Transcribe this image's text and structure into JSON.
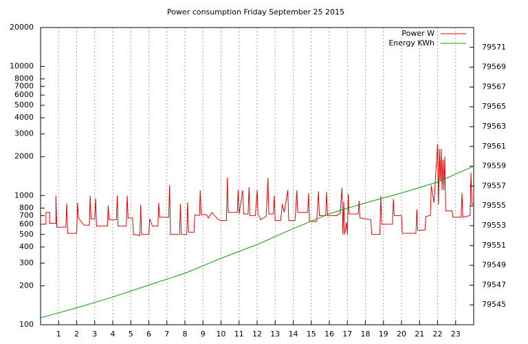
{
  "chart_data": {
    "type": "line",
    "title": "Power consumption Friday September 25 2015",
    "xlim": [
      0,
      24
    ],
    "xticks": [
      1,
      2,
      3,
      4,
      5,
      6,
      7,
      8,
      9,
      10,
      11,
      12,
      13,
      14,
      15,
      16,
      17,
      18,
      19,
      20,
      21,
      22,
      23
    ],
    "ylim": [
      100,
      20000
    ],
    "log_y": true,
    "yticks": [
      100,
      200,
      300,
      400,
      500,
      600,
      700,
      800,
      1000,
      2000,
      3000,
      4000,
      5000,
      6000,
      7000,
      8000,
      10000,
      20000
    ],
    "y2lim": [
      79543,
      79573
    ],
    "y2ticks": [
      79545,
      79547,
      79549,
      79551,
      79553,
      79555,
      79557,
      79559,
      79561,
      79563,
      79565,
      79567,
      79569,
      79571
    ],
    "grid": "x",
    "legend": "top-right",
    "series": [
      {
        "name": "Power W",
        "color": "#e00000",
        "x": [
          0,
          0.3,
          0.3,
          0.5,
          0.5,
          0.85,
          0.85,
          0.9,
          1.4,
          1.45,
          1.5,
          2.0,
          2.05,
          2.1,
          2.4,
          2.7,
          2.75,
          2.8,
          3.0,
          3.05,
          3.1,
          3.7,
          3.75,
          3.8,
          4.2,
          4.25,
          4.3,
          4.75,
          4.8,
          4.85,
          5.1,
          5.15,
          5.5,
          5.55,
          5.6,
          6.0,
          6.05,
          6.2,
          6.5,
          6.55,
          6.6,
          7.1,
          7.15,
          7.2,
          7.7,
          7.75,
          7.8,
          8.1,
          8.15,
          8.2,
          8.5,
          8.55,
          8.8,
          8.85,
          8.9,
          9.2,
          9.3,
          9.5,
          9.8,
          10.0,
          10.3,
          10.35,
          10.4,
          10.9,
          10.95,
          11.0,
          11.2,
          11.25,
          11.5,
          11.55,
          11.6,
          11.9,
          12.0,
          12.05,
          12.2,
          12.5,
          12.6,
          12.65,
          12.9,
          12.95,
          13.0,
          13.3,
          13.4,
          13.5,
          13.7,
          13.75,
          14.1,
          14.2,
          14.25,
          14.8,
          14.85,
          14.9,
          15.3,
          15.4,
          15.45,
          15.8,
          15.85,
          15.9,
          16.4,
          16.6,
          16.7,
          16.75,
          16.8,
          16.85,
          16.95,
          17.0,
          17.05,
          17.1,
          17.6,
          17.65,
          17.7,
          18.3,
          18.35,
          18.8,
          18.85,
          18.9,
          19.5,
          19.55,
          19.6,
          20.0,
          20.05,
          20.8,
          20.85,
          20.9,
          21.3,
          21.35,
          21.6,
          21.65,
          21.8,
          22.0,
          22.05,
          22.1,
          22.15,
          22.2,
          22.25,
          22.3,
          22.35,
          22.4,
          22.45,
          22.8,
          22.85,
          23.3,
          23.35,
          23.4,
          23.8,
          23.85,
          23.9,
          24
        ],
        "values": [
          600,
          600,
          740,
          740,
          610,
          610,
          1000,
          570,
          570,
          870,
          510,
          510,
          880,
          670,
          590,
          590,
          1000,
          660,
          660,
          950,
          580,
          580,
          840,
          650,
          650,
          1000,
          580,
          580,
          1000,
          670,
          670,
          500,
          490,
          850,
          500,
          500,
          660,
          580,
          580,
          880,
          680,
          680,
          1200,
          500,
          500,
          860,
          500,
          500,
          890,
          520,
          520,
          710,
          700,
          1100,
          710,
          710,
          670,
          740,
          660,
          640,
          640,
          1380,
          740,
          740,
          1100,
          720,
          1100,
          720,
          720,
          1160,
          700,
          700,
          1100,
          720,
          650,
          690,
          1370,
          720,
          720,
          1000,
          640,
          640,
          860,
          740,
          1100,
          640,
          640,
          1100,
          740,
          740,
          1040,
          630,
          630,
          1080,
          700,
          700,
          1070,
          700,
          700,
          730,
          1150,
          500,
          900,
          500,
          620,
          500,
          1030,
          720,
          720,
          910,
          670,
          650,
          500,
          500,
          1000,
          600,
          600,
          940,
          700,
          700,
          510,
          510,
          780,
          540,
          540,
          690,
          700,
          1200,
          880,
          2500,
          850,
          2300,
          1300,
          2300,
          1100,
          1900,
          1100,
          2000,
          760,
          760,
          680,
          680,
          1050,
          680,
          700,
          1500,
          860,
          860
        ]
      },
      {
        "name": "Energy KWh",
        "color": "#00a000",
        "axis": "y2",
        "x": [
          0,
          2,
          4,
          6,
          8,
          10,
          12,
          14,
          16,
          18,
          20,
          22,
          24
        ],
        "values": [
          79543.7,
          79544.7,
          79545.8,
          79547.0,
          79548.2,
          79549.7,
          79551.1,
          79552.7,
          79554.2,
          79555.3,
          79556.3,
          79557.4,
          79559.0
        ]
      }
    ]
  }
}
